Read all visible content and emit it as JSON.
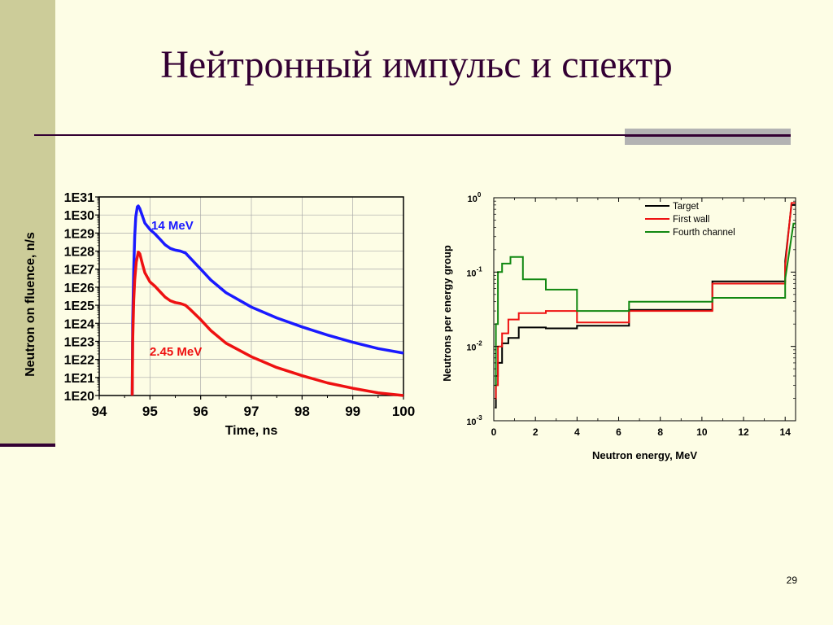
{
  "slide": {
    "title": "Нейтронный импульс и спектр",
    "page_number": "29"
  },
  "chart_data": [
    {
      "type": "line",
      "xlabel": "Time, ns",
      "ylabel": "Neutron on fluence, n/s",
      "xlim": [
        94,
        100
      ],
      "ylim_log10": [
        20,
        31
      ],
      "y_scale": "log",
      "x_ticks": [
        "94",
        "95",
        "96",
        "97",
        "98",
        "99",
        "100"
      ],
      "y_ticks": [
        "1E20",
        "1E21",
        "1E22",
        "1E23",
        "1E24",
        "1E25",
        "1E26",
        "1E27",
        "1E28",
        "1E29",
        "1E30",
        "1E31"
      ],
      "grid": true,
      "series": [
        {
          "name": "14 MeV",
          "color": "#1a1aff",
          "points": [
            [
              94.65,
              20.0
            ],
            [
              94.66,
              24.0
            ],
            [
              94.68,
              27.0
            ],
            [
              94.7,
              28.8
            ],
            [
              94.72,
              29.9
            ],
            [
              94.75,
              30.45
            ],
            [
              94.77,
              30.5
            ],
            [
              94.8,
              30.35
            ],
            [
              94.85,
              29.95
            ],
            [
              94.9,
              29.55
            ],
            [
              95.0,
              29.2
            ],
            [
              95.1,
              28.95
            ],
            [
              95.2,
              28.65
            ],
            [
              95.3,
              28.35
            ],
            [
              95.4,
              28.15
            ],
            [
              95.5,
              28.05
            ],
            [
              95.6,
              28.0
            ],
            [
              95.7,
              27.9
            ],
            [
              95.8,
              27.6
            ],
            [
              96.0,
              27.0
            ],
            [
              96.2,
              26.4
            ],
            [
              96.5,
              25.7
            ],
            [
              97.0,
              24.9
            ],
            [
              97.5,
              24.3
            ],
            [
              98.0,
              23.8
            ],
            [
              98.5,
              23.35
            ],
            [
              99.0,
              22.95
            ],
            [
              99.5,
              22.6
            ],
            [
              100.0,
              22.35
            ]
          ]
        },
        {
          "name": "2.45 MeV",
          "color": "#ee1111",
          "points": [
            [
              94.65,
              20.0
            ],
            [
              94.66,
              23.0
            ],
            [
              94.68,
              25.3
            ],
            [
              94.7,
              26.4
            ],
            [
              94.73,
              27.4
            ],
            [
              94.77,
              27.95
            ],
            [
              94.8,
              27.85
            ],
            [
              94.85,
              27.3
            ],
            [
              94.9,
              26.8
            ],
            [
              95.0,
              26.3
            ],
            [
              95.1,
              26.05
            ],
            [
              95.2,
              25.75
            ],
            [
              95.3,
              25.45
            ],
            [
              95.4,
              25.25
            ],
            [
              95.5,
              25.15
            ],
            [
              95.6,
              25.1
            ],
            [
              95.7,
              25.0
            ],
            [
              95.8,
              24.75
            ],
            [
              96.0,
              24.2
            ],
            [
              96.2,
              23.6
            ],
            [
              96.5,
              22.9
            ],
            [
              97.0,
              22.15
            ],
            [
              97.5,
              21.55
            ],
            [
              98.0,
              21.1
            ],
            [
              98.5,
              20.7
            ],
            [
              99.0,
              20.4
            ],
            [
              99.5,
              20.15
            ],
            [
              100.0,
              20.0
            ]
          ]
        }
      ],
      "annotations": [
        {
          "text": "14 MeV",
          "color": "#1a1aff"
        },
        {
          "text": "2.45 MeV",
          "color": "#ee1111"
        }
      ]
    },
    {
      "type": "line",
      "xlabel": "Neutron energy, MeV",
      "ylabel": "Neutrons per energy group",
      "xlim": [
        0,
        14.5
      ],
      "ylim_log10": [
        -3,
        0
      ],
      "y_scale": "log",
      "x_ticks": [
        "0",
        "2",
        "4",
        "6",
        "8",
        "10",
        "12",
        "14"
      ],
      "y_ticks": [
        {
          "base": "10",
          "exp": "-3"
        },
        {
          "base": "10",
          "exp": "-2"
        },
        {
          "base": "10",
          "exp": "-1"
        },
        {
          "base": "10",
          "exp": "0"
        }
      ],
      "grid": false,
      "legend_position": "top-right",
      "series": [
        {
          "name": "Target",
          "color": "#000000",
          "points": [
            [
              0.05,
              0.0015
            ],
            [
              0.1,
              0.0015
            ],
            [
              0.1,
              0.004
            ],
            [
              0.2,
              0.004
            ],
            [
              0.2,
              0.006
            ],
            [
              0.4,
              0.006
            ],
            [
              0.4,
              0.011
            ],
            [
              0.7,
              0.011
            ],
            [
              0.7,
              0.013
            ],
            [
              1.2,
              0.013
            ],
            [
              1.2,
              0.018
            ],
            [
              2.5,
              0.018
            ],
            [
              2.5,
              0.0175
            ],
            [
              4.0,
              0.0175
            ],
            [
              4.0,
              0.019
            ],
            [
              6.5,
              0.019
            ],
            [
              6.5,
              0.031
            ],
            [
              10.5,
              0.031
            ],
            [
              10.5,
              0.075
            ],
            [
              14.0,
              0.075
            ],
            [
              14.0,
              0.14
            ],
            [
              14.3,
              0.8
            ],
            [
              14.5,
              0.8
            ]
          ]
        },
        {
          "name": "First wall",
          "color": "#ee1111",
          "points": [
            [
              0.05,
              0.002
            ],
            [
              0.1,
              0.002
            ],
            [
              0.1,
              0.003
            ],
            [
              0.2,
              0.003
            ],
            [
              0.2,
              0.01
            ],
            [
              0.4,
              0.01
            ],
            [
              0.4,
              0.015
            ],
            [
              0.7,
              0.015
            ],
            [
              0.7,
              0.023
            ],
            [
              1.2,
              0.023
            ],
            [
              1.2,
              0.028
            ],
            [
              2.5,
              0.028
            ],
            [
              2.5,
              0.03
            ],
            [
              4.0,
              0.03
            ],
            [
              4.0,
              0.021
            ],
            [
              6.5,
              0.021
            ],
            [
              6.5,
              0.03
            ],
            [
              10.5,
              0.03
            ],
            [
              10.5,
              0.07
            ],
            [
              14.0,
              0.07
            ],
            [
              14.0,
              0.12
            ],
            [
              14.3,
              0.85
            ],
            [
              14.5,
              0.85
            ]
          ]
        },
        {
          "name": "Fourth channel",
          "color": "#118811",
          "points": [
            [
              0.05,
              0.003
            ],
            [
              0.1,
              0.003
            ],
            [
              0.1,
              0.02
            ],
            [
              0.2,
              0.02
            ],
            [
              0.2,
              0.1
            ],
            [
              0.4,
              0.1
            ],
            [
              0.4,
              0.13
            ],
            [
              0.8,
              0.13
            ],
            [
              0.8,
              0.16
            ],
            [
              1.4,
              0.16
            ],
            [
              1.4,
              0.08
            ],
            [
              2.5,
              0.08
            ],
            [
              2.5,
              0.058
            ],
            [
              4.0,
              0.058
            ],
            [
              4.0,
              0.03
            ],
            [
              6.5,
              0.03
            ],
            [
              6.5,
              0.04
            ],
            [
              10.5,
              0.04
            ],
            [
              10.5,
              0.045
            ],
            [
              14.0,
              0.045
            ],
            [
              14.0,
              0.08
            ],
            [
              14.4,
              0.45
            ],
            [
              14.5,
              0.45
            ]
          ]
        }
      ]
    }
  ]
}
